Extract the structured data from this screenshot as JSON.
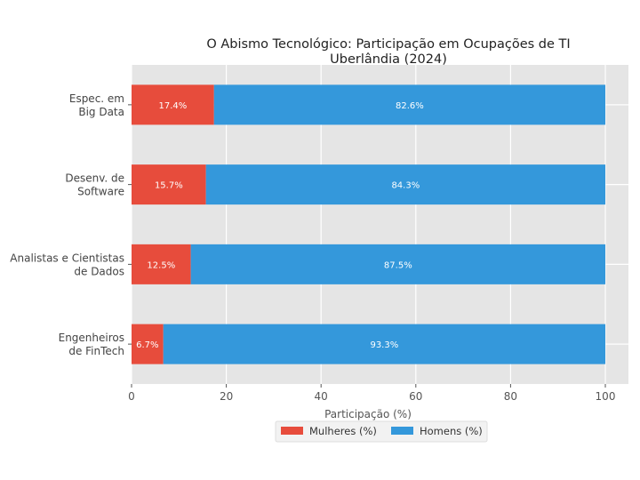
{
  "chart_data": {
    "type": "bar",
    "orientation": "horizontal",
    "stacked": true,
    "title": "O Abismo Tecnológico: Participação em Ocupações de TI",
    "subtitle": "Uberlândia (2024)",
    "xlabel": "Participação (%)",
    "ylabel": "",
    "xlim": [
      0,
      105
    ],
    "xticks": [
      "0",
      "20",
      "40",
      "60",
      "80",
      "100"
    ],
    "grid": true,
    "legend_position": "bottom",
    "categories": [
      [
        "Espec. em",
        "Big Data"
      ],
      [
        "Desenv. de",
        "Software"
      ],
      [
        "Analistas e Cientistas",
        "de Dados"
      ],
      [
        "Engenheiros",
        "de FinTech"
      ]
    ],
    "series": [
      {
        "name": "Mulheres (%)",
        "color": "#e74c3c",
        "values": [
          17.4,
          15.7,
          12.5,
          6.7
        ],
        "labels": [
          "17.4%",
          "15.7%",
          "12.5%",
          "6.7%"
        ]
      },
      {
        "name": "Homens (%)",
        "color": "#3498db",
        "values": [
          82.6,
          84.3,
          87.5,
          93.3
        ],
        "labels": [
          "82.6%",
          "84.3%",
          "87.5%",
          "93.3%"
        ]
      }
    ]
  }
}
